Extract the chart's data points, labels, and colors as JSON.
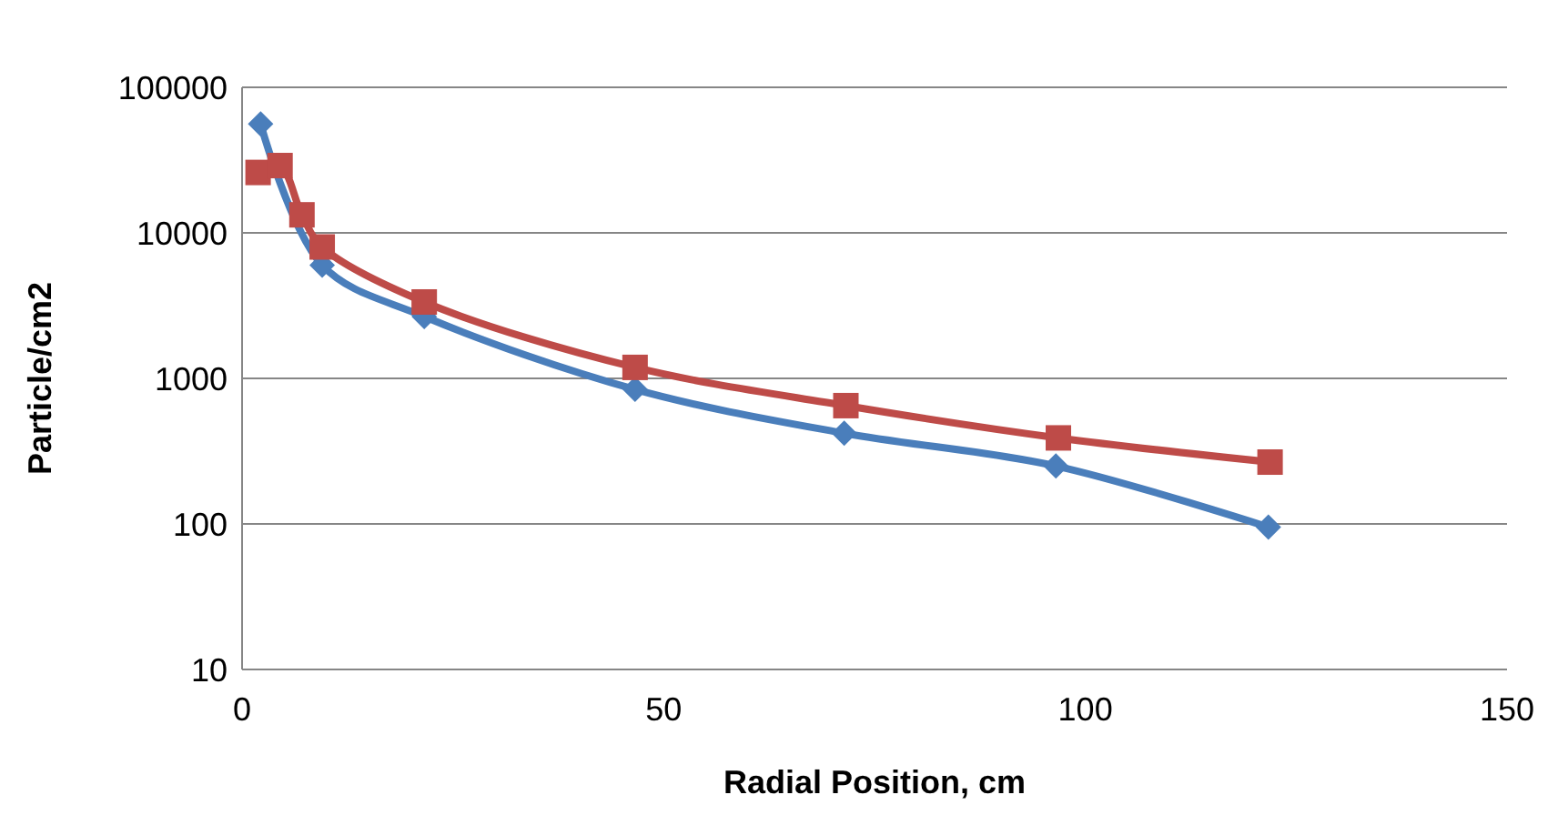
{
  "chart_data": {
    "type": "line",
    "xlabel": "Radial Position, cm",
    "ylabel": "Particle/cm2",
    "log": "y",
    "grid": "y",
    "xlim": [
      0,
      150
    ],
    "xticks": [
      0,
      50,
      100,
      150
    ],
    "ylim": [
      10,
      100000
    ],
    "yticks": [
      10,
      100,
      1000,
      10000,
      100000
    ],
    "series": [
      {
        "color": "#4a7ebb",
        "marker": "diamond",
        "x": [
          2.2,
          5,
          7.5,
          9.5,
          21.6,
          46.6,
          71.4,
          96.5,
          121.7
        ],
        "values": [
          56000,
          null,
          null,
          6000,
          2660,
          840,
          420,
          250,
          95
        ]
      },
      {
        "color": "#be4b48",
        "marker": "square",
        "x": [
          1.9,
          4.5,
          7.1,
          9.5,
          21.6,
          46.6,
          71.6,
          96.8,
          121.9
        ],
        "values": [
          26000,
          29000,
          13300,
          8000,
          3350,
          1190,
          650,
          390,
          266
        ]
      }
    ]
  }
}
